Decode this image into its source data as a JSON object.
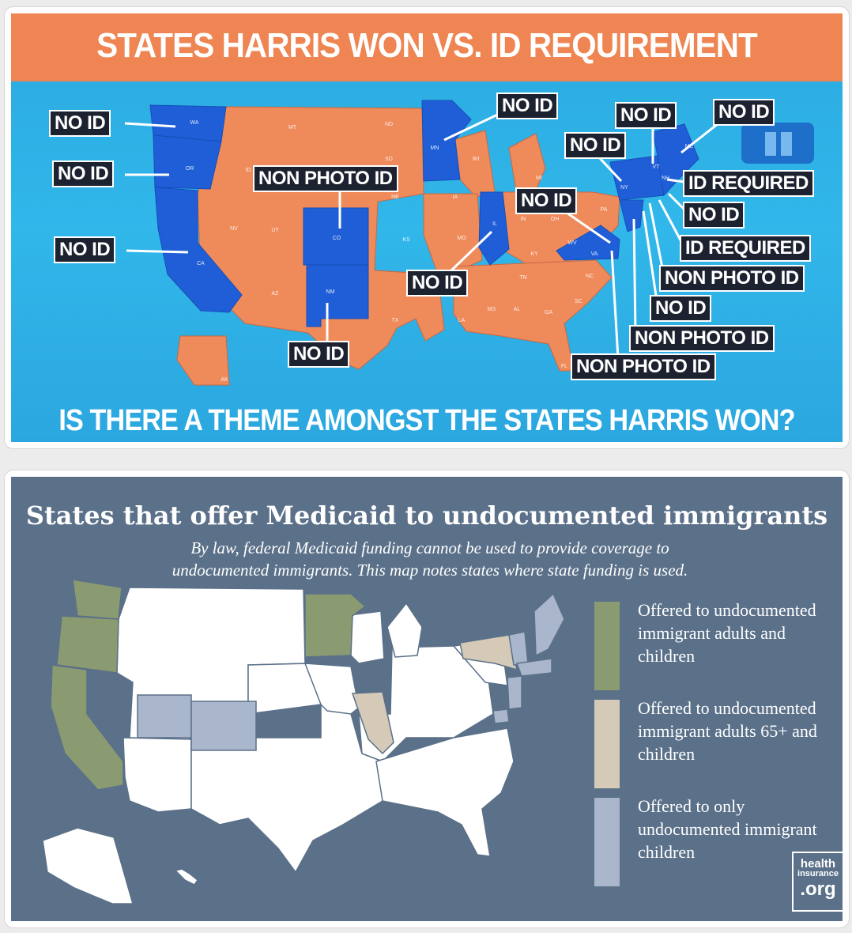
{
  "top_graphic": {
    "title": "STATES HARRIS WON VS. ID REQUIREMENT",
    "question": "IS THERE A THEME AMONGST THE STATES HARRIS WON?",
    "colors": {
      "harris_won": "#1f5ed6",
      "trump_won": "#ef8a5b",
      "background": "#2ba9e1",
      "banner": "#ee8552",
      "label_bg": "#1d2230"
    },
    "labels": {
      "wa": "NO ID",
      "or": "NO ID",
      "ca": "NO ID",
      "co": "NON PHOTO ID",
      "nm": "NO ID",
      "mn": "NO ID",
      "il": "NO ID",
      "va": "NO ID",
      "ny": "NO ID",
      "vt": "NO ID",
      "me": "NO ID",
      "nh": "ID REQUIRED",
      "ma": "NO ID",
      "ri": "ID REQUIRED",
      "ct": "NON PHOTO ID",
      "nj": "NO ID",
      "de": "NON PHOTO ID",
      "md": "NON PHOTO ID"
    },
    "state_abbrevs": [
      "WA",
      "OR",
      "CA",
      "NV",
      "ID",
      "MT",
      "WY",
      "UT",
      "AZ",
      "CO",
      "NM",
      "ND",
      "SD",
      "NE",
      "KS",
      "OK",
      "TX",
      "MN",
      "IA",
      "MO",
      "AR",
      "LA",
      "WI",
      "IL",
      "MI",
      "IN",
      "OH",
      "KY",
      "TN",
      "MS",
      "AL",
      "GA",
      "FL",
      "SC",
      "NC",
      "VA",
      "WV",
      "PA",
      "NY",
      "VT",
      "NH",
      "ME",
      "AK"
    ]
  },
  "bottom_graphic": {
    "title": "States that offer Medicaid to undocumented immigrants",
    "subtitle": "By law, federal Medicaid funding cannot be used to provide coverage to undocumented immigrants. This map notes states where state funding is used.",
    "legend": [
      {
        "label": "Offered to undocumented immigrant adults and children",
        "color": "#8a9b72"
      },
      {
        "label": "Offered to undocumented immigrant adults 65+ and children",
        "color": "#d4cab7"
      },
      {
        "label": "Offered to only undocumented immigrant children",
        "color": "#aab6cb"
      }
    ],
    "logo": {
      "line1": "health",
      "line2": "insurance",
      "line3": ".org"
    },
    "colors": {
      "background": "#5b7089",
      "other_states": "#ffffff",
      "border": "#5b7089"
    }
  }
}
